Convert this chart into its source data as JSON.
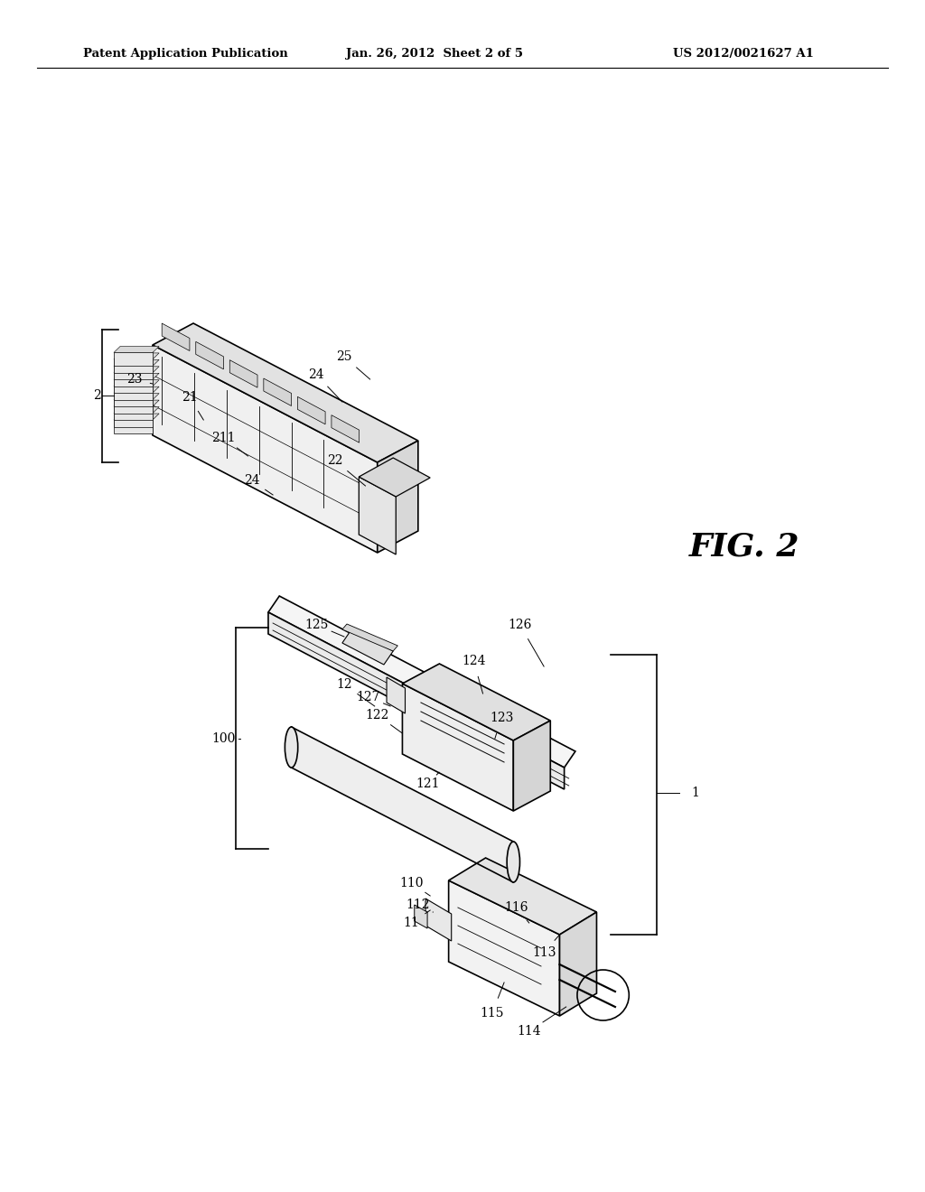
{
  "background_color": "#ffffff",
  "header_left": "Patent Application Publication",
  "header_center": "Jan. 26, 2012  Sheet 2 of 5",
  "header_right": "US 2012/0021627 A1",
  "fig_label": "FIG. 2",
  "line_color": "#000000",
  "line_width": 1.2
}
